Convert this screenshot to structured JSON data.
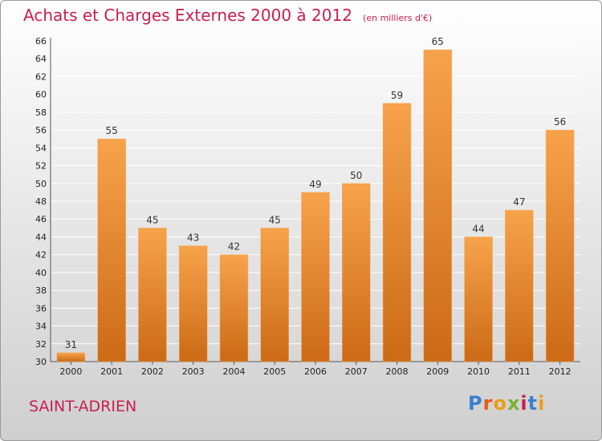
{
  "header": {
    "title": "Achats et Charges Externes 2000 à 2012",
    "unit": "(en milliers d'€)"
  },
  "footer": {
    "commune": "SAINT-ADRIEN",
    "logo": "Proxiti",
    "logo_colors": [
      "#3a7fd0",
      "#e85a16",
      "#e8a01a",
      "#79b433",
      "#c8204f",
      "#3a7fd0",
      "#e8a01a"
    ]
  },
  "colors": {
    "accent": "#c8204f",
    "bar_top": "#f7a34b",
    "bar_bottom": "#cc6a16",
    "axis_text": "#222222",
    "label_text": "#333333"
  },
  "chart_data": {
    "type": "bar",
    "categories": [
      "2000",
      "2001",
      "2002",
      "2003",
      "2004",
      "2005",
      "2006",
      "2007",
      "2008",
      "2009",
      "2010",
      "2011",
      "2012"
    ],
    "values": [
      31,
      55,
      45,
      43,
      42,
      45,
      49,
      50,
      59,
      65,
      44,
      47,
      56
    ],
    "ylim": [
      30,
      66
    ],
    "ytick_step": 2,
    "grid": true,
    "legend": "none"
  }
}
